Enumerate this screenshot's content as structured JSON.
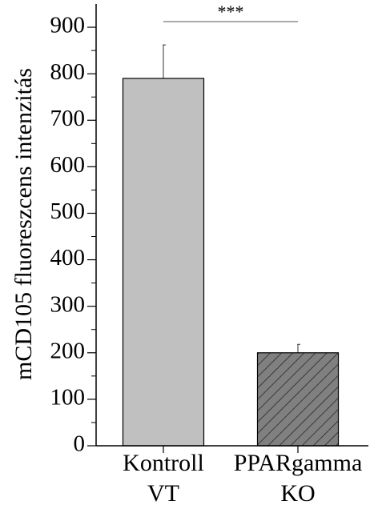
{
  "chart_data": {
    "type": "bar",
    "ylabel": "mCD105 fluoreszcens intenzitás",
    "categories": [
      "Kontroll VT",
      "PPARgamma KO"
    ],
    "values": [
      790,
      200
    ],
    "errors": [
      72,
      18
    ],
    "colors": [
      "#c0c0c0",
      "#808080"
    ],
    "hatch": [
      false,
      true
    ],
    "ylim": [
      0,
      950
    ],
    "yticks": [
      0,
      100,
      200,
      300,
      400,
      500,
      600,
      700,
      800,
      900
    ],
    "annotation": "***"
  }
}
